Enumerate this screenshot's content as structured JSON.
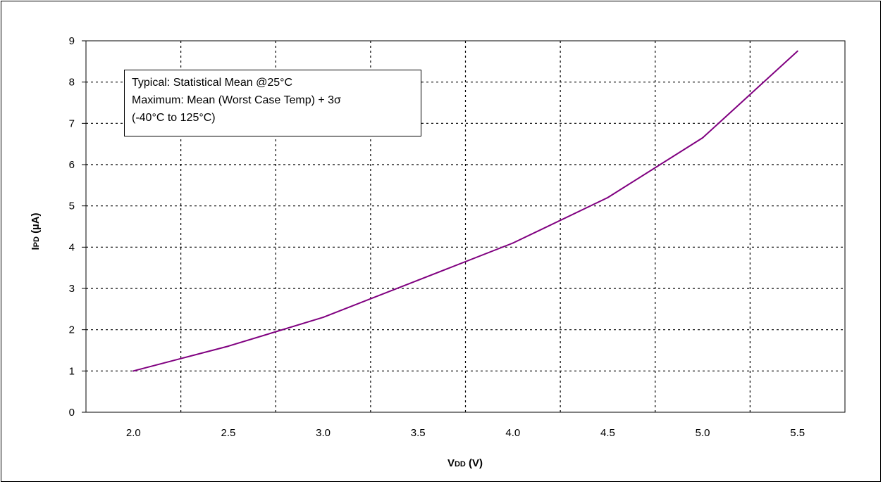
{
  "chart_data": {
    "type": "line",
    "title": "",
    "xlabel": "VDD (V)",
    "xlabel_main": "V",
    "xlabel_sub": "DD",
    "xlabel_unit": " (V)",
    "ylabel": "IPD (µA)",
    "ylabel_main": "I",
    "ylabel_sub": "PD",
    "ylabel_unit": " (µA)",
    "xlim": [
      1.75,
      5.75
    ],
    "ylim": [
      0,
      9
    ],
    "x_ticks": [
      "2.0",
      "2.5",
      "3.0",
      "3.5",
      "4.0",
      "4.5",
      "5.0",
      "5.5"
    ],
    "y_ticks": [
      "0",
      "1",
      "2",
      "3",
      "4",
      "5",
      "6",
      "7",
      "8",
      "9"
    ],
    "grid": true,
    "series": [
      {
        "color": "#800080",
        "x": [
          2.0,
          2.5,
          3.0,
          3.5,
          4.0,
          4.5,
          5.0,
          5.5
        ],
        "y": [
          1.0,
          1.6,
          2.3,
          3.2,
          4.1,
          5.2,
          6.65,
          8.75
        ]
      }
    ],
    "legend": {
      "placement": "top-left",
      "lines": [
        "Typical: Statistical Mean @25°C",
        "Maximum: Mean (Worst Case Temp) + 3σ",
        "(-40°C to 125°C)"
      ]
    }
  }
}
